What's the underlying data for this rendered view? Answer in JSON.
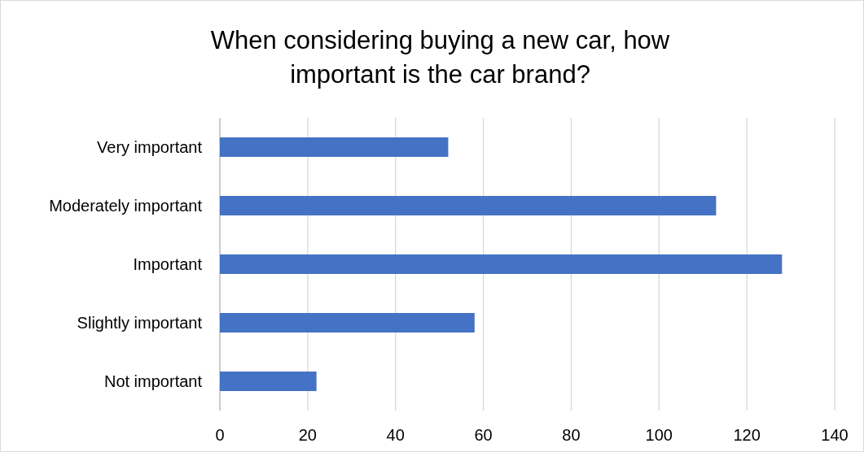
{
  "chart_data": {
    "type": "bar",
    "orientation": "horizontal",
    "title": "When considering buying a new car, how\nimportant is the car brand?",
    "categories": [
      "Very important",
      "Moderately important",
      "Important",
      "Slightly important",
      "Not important"
    ],
    "values": [
      52,
      113,
      128,
      58,
      22
    ],
    "color": "#4472c4",
    "xlim": [
      0,
      140
    ],
    "xticks": [
      0,
      20,
      40,
      60,
      80,
      100,
      120,
      140
    ],
    "grid": "x"
  }
}
